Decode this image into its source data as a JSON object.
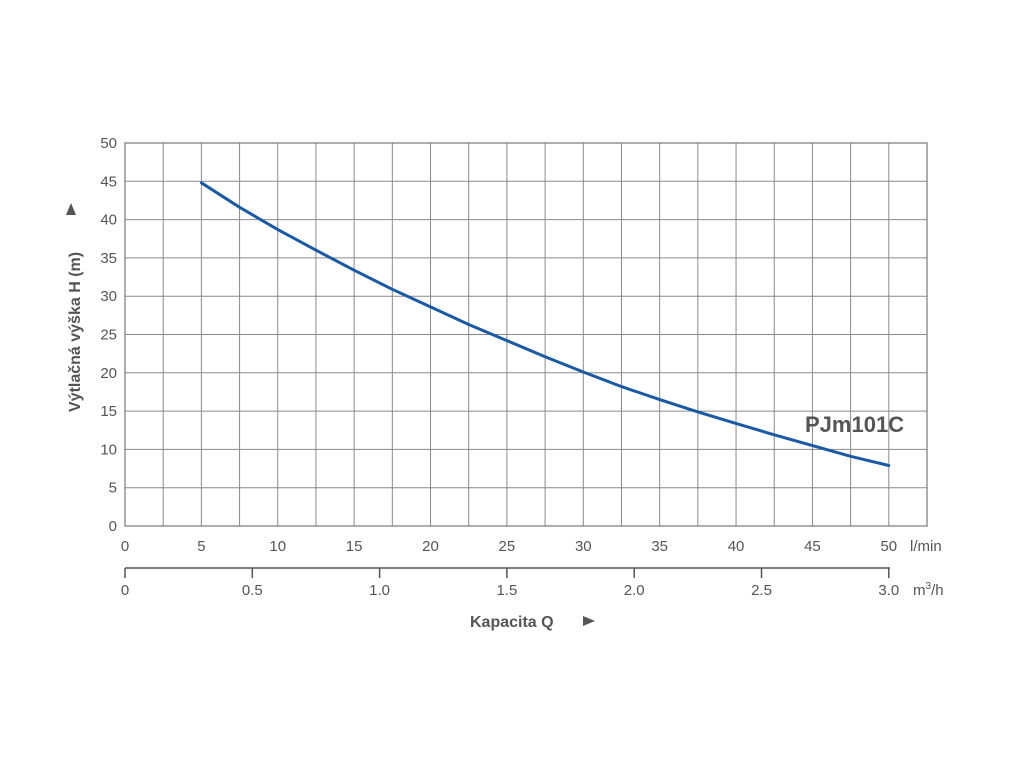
{
  "chart_data": {
    "type": "line",
    "title": "",
    "ylabel": "Výtlačná výška H (m)",
    "xlabel": "Kapacita Q",
    "ylim": [
      0,
      50
    ],
    "xlim": [
      0,
      52.5
    ],
    "yticks": [
      "0",
      "5",
      "10",
      "15",
      "20",
      "25",
      "30",
      "35",
      "40",
      "45",
      "50"
    ],
    "xticks_lmin": [
      "0",
      "5",
      "10",
      "15",
      "20",
      "25",
      "30",
      "35",
      "40",
      "45",
      "50"
    ],
    "xunit_lmin": "l/min",
    "xticks_m3h": [
      "0",
      "0.5",
      "1.0",
      "1.5",
      "2.0",
      "2.5",
      "3.0"
    ],
    "xunit_m3h_base": "m",
    "xunit_m3h_sup": "3",
    "xunit_m3h_tail": "/h",
    "grid": true,
    "series": [
      {
        "name": "PJm101C",
        "color": "#1b5aa3",
        "x": [
          5,
          7.5,
          10,
          12.5,
          15,
          17.5,
          20,
          22.5,
          25,
          27.5,
          30,
          32.5,
          35,
          37.5,
          40,
          42.5,
          45,
          47.5,
          50
        ],
        "y": [
          44.8,
          41.6,
          38.7,
          36.0,
          33.4,
          30.9,
          28.6,
          26.3,
          24.2,
          22.1,
          20.1,
          18.2,
          16.5,
          14.9,
          13.4,
          11.9,
          10.5,
          9.1,
          7.9
        ]
      }
    ]
  }
}
